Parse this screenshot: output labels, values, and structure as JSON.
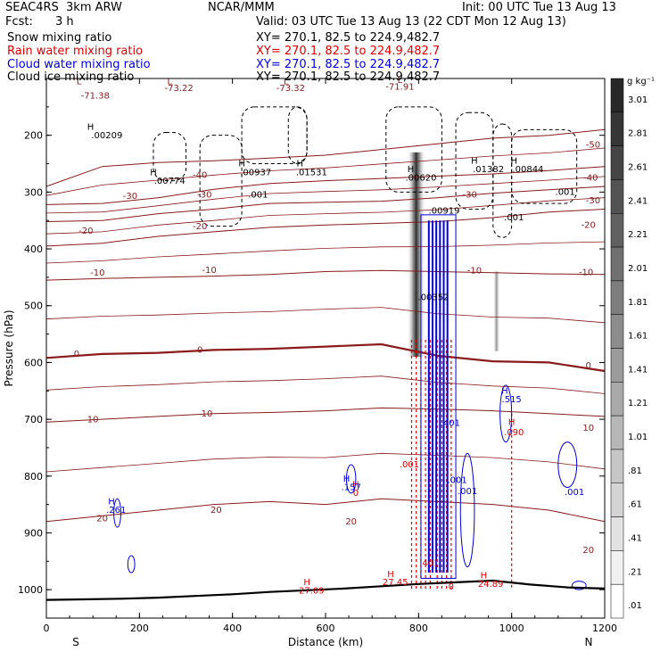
{
  "header": {
    "model": "SEAC4RS  3km ARW",
    "org": "NCAR/MMM",
    "init": "Init: 00 UTC Tue 13 Aug 13",
    "fcst_label": "Fcst:",
    "fcst_value": "3 h",
    "valid": "Valid: 03 UTC Tue 13 Aug 13 (22 CDT Mon 12 Aug 13)",
    "fields": [
      {
        "name": "Snow mixing ratio",
        "xy": "XY= 270.1, 82.5 to 224.9,482.7",
        "color": "#000000"
      },
      {
        "name": "Rain water mixing ratio",
        "xy": "XY= 270.1, 82.5 to 224.9,482.7",
        "color": "#e00000"
      },
      {
        "name": "Cloud water mixing ratio",
        "xy": "XY= 270.1, 82.5 to 224.9,482.7",
        "color": "#0000e0"
      },
      {
        "name": "Cloud ice mixing ratio",
        "xy": "XY= 270.1, 82.5 to 224.9,482.7",
        "color": "#000000"
      }
    ]
  },
  "colorbar": {
    "unit": "g kg⁻¹",
    "labels": [
      "3.01",
      "2.81",
      "2.61",
      "2.41",
      "2.21",
      "2.01",
      "1.81",
      "1.61",
      "1.41",
      "1.21",
      "1.01",
      ".81",
      ".61",
      ".41",
      ".21",
      ".01"
    ]
  },
  "chart_data": {
    "type": "cross-section",
    "xlabel": "Distance (km)",
    "ylabel": "Pressure (hPa)",
    "xlim": [
      0,
      1200
    ],
    "ylim": [
      1050,
      100
    ],
    "x_ticks": [
      0,
      200,
      400,
      600,
      800,
      1000,
      1200
    ],
    "y_ticks": [
      200,
      300,
      400,
      500,
      600,
      700,
      800,
      900,
      1000
    ],
    "direction_labels": {
      "left": "S",
      "right": "N"
    },
    "temperature_contours": [
      {
        "label": "-50",
        "p": [
          290,
          255,
          248,
          245,
          240,
          235,
          225,
          215,
          205,
          200,
          190
        ]
      },
      {
        "label": "-40",
        "p": [
          322,
          320,
          310,
          295,
          285,
          280,
          276,
          272,
          268,
          262,
          255
        ]
      },
      {
        "label": "-30",
        "p": [
          352,
          350,
          338,
          330,
          320,
          318,
          316,
          310,
          302,
          296,
          290
        ]
      },
      {
        "label": "-20",
        "p": [
          395,
          390,
          378,
          370,
          362,
          358,
          355,
          352,
          345,
          335,
          330
        ]
      },
      {
        "label": "-10",
        "p": [
          455,
          452,
          450,
          448,
          445,
          440,
          438,
          440,
          442,
          444,
          445
        ]
      },
      {
        "label": "0",
        "p": [
          592,
          585,
          583,
          578,
          576,
          572,
          568,
          588,
          598,
          600,
          615
        ]
      },
      {
        "label": "10",
        "p": [
          705,
          700,
          695,
          690,
          688,
          685,
          680,
          682,
          685,
          690,
          695
        ]
      },
      {
        "label": "20",
        "p": [
          880,
          870,
          860,
          850,
          845,
          850,
          840,
          845,
          850,
          860,
          880
        ]
      }
    ],
    "contour_labels": [
      {
        "text": "-73.22",
        "x": 285,
        "p": 122
      },
      {
        "text": "-73.32",
        "x": 525,
        "p": 122
      },
      {
        "text": "-71.91",
        "x": 760,
        "p": 120
      },
      {
        "text": "-71.38",
        "x": 105,
        "p": 135
      },
      {
        "text": "L",
        "x": 70,
        "p": 110
      },
      {
        "text": "L",
        "x": 265,
        "p": 110
      },
      {
        "text": "L",
        "x": 515,
        "p": 110
      },
      {
        "text": "L",
        "x": 760,
        "p": 108
      },
      {
        "text": "-50",
        "x": 1175,
        "p": 222
      },
      {
        "text": "-40",
        "x": 330,
        "p": 275
      },
      {
        "text": "-40",
        "x": 1170,
        "p": 280
      },
      {
        "text": "-30",
        "x": 180,
        "p": 312
      },
      {
        "text": "-30",
        "x": 340,
        "p": 310
      },
      {
        "text": "-30",
        "x": 910,
        "p": 310
      },
      {
        "text": "-30",
        "x": 1175,
        "p": 320
      },
      {
        "text": "-20",
        "x": 85,
        "p": 373
      },
      {
        "text": "-20",
        "x": 330,
        "p": 365
      },
      {
        "text": "-20",
        "x": 1165,
        "p": 363
      },
      {
        "text": "-10",
        "x": 110,
        "p": 447
      },
      {
        "text": "-10",
        "x": 350,
        "p": 442
      },
      {
        "text": "-10",
        "x": 920,
        "p": 443
      },
      {
        "text": "-10",
        "x": 1160,
        "p": 446
      },
      {
        "text": "0",
        "x": 65,
        "p": 590
      },
      {
        "text": "0",
        "x": 330,
        "p": 583
      },
      {
        "text": "0",
        "x": 1165,
        "p": 610
      },
      {
        "text": "10",
        "x": 100,
        "p": 705
      },
      {
        "text": "10",
        "x": 345,
        "p": 695
      },
      {
        "text": "10",
        "x": 1165,
        "p": 720
      },
      {
        "text": "20",
        "x": 120,
        "p": 880
      },
      {
        "text": "20",
        "x": 365,
        "p": 865
      },
      {
        "text": "20",
        "x": 655,
        "p": 885
      },
      {
        "text": "20",
        "x": 1165,
        "p": 935
      }
    ],
    "snow_labels": [
      {
        "text": "H",
        "x": 95,
        "p": 190
      },
      {
        "text": ".00209",
        "x": 130,
        "p": 205
      },
      {
        "text": "H",
        "x": 230,
        "p": 270
      },
      {
        "text": ".00774",
        "x": 265,
        "p": 285
      },
      {
        "text": "H",
        "x": 420,
        "p": 255
      },
      {
        "text": ".00937",
        "x": 450,
        "p": 270
      },
      {
        "text": "H",
        "x": 545,
        "p": 255
      },
      {
        "text": ".01531",
        "x": 570,
        "p": 270
      },
      {
        "text": ".001",
        "x": 455,
        "p": 310
      },
      {
        "text": "H",
        "x": 783,
        "p": 265
      },
      {
        "text": ".00620",
        "x": 805,
        "p": 280
      },
      {
        "text": "H",
        "x": 920,
        "p": 250
      },
      {
        "text": ".01382",
        "x": 950,
        "p": 265
      },
      {
        "text": "H",
        "x": 1005,
        "p": 250
      },
      {
        "text": ".00844",
        "x": 1035,
        "p": 265
      },
      {
        "text": ".001",
        "x": 1115,
        "p": 305
      },
      {
        "text": ".001",
        "x": 1005,
        "p": 350
      },
      {
        "text": ".00919",
        "x": 855,
        "p": 338
      }
    ],
    "cloud_ice_labels": [
      {
        "text": ".00352",
        "x": 832,
        "p": 490
      }
    ],
    "rain_labels": [
      {
        "text": "H",
        "x": 1000,
        "p": 710
      },
      {
        "text": ".090",
        "x": 1005,
        "p": 728
      },
      {
        "text": "H",
        "x": 665,
        "p": 820
      },
      {
        "text": "0",
        "x": 665,
        "p": 835
      },
      {
        "text": ".001",
        "x": 780,
        "p": 785
      },
      {
        "text": "H",
        "x": 560,
        "p": 992
      },
      {
        "text": "27.09",
        "x": 570,
        "p": 1007
      },
      {
        "text": "H",
        "x": 740,
        "p": 978
      },
      {
        "text": "27.45",
        "x": 750,
        "p": 992
      },
      {
        "text": "H",
        "x": 940,
        "p": 980
      },
      {
        "text": "24.89",
        "x": 955,
        "p": 995
      },
      {
        "text": ".401",
        "x": 823,
        "p": 958
      },
      {
        "text": "0",
        "x": 870,
        "p": 1000
      }
    ],
    "cloud_water_labels": [
      {
        "text": "H",
        "x": 985,
        "p": 655
      },
      {
        "text": ".515",
        "x": 1000,
        "p": 670
      },
      {
        "text": ".401",
        "x": 868,
        "p": 712
      },
      {
        "text": "H",
        "x": 645,
        "p": 810
      },
      {
        "text": ".157",
        "x": 655,
        "p": 825
      },
      {
        "text": "H",
        "x": 140,
        "p": 850
      },
      {
        "text": ".261",
        "x": 150,
        "p": 865
      },
      {
        "text": ".001",
        "x": 883,
        "p": 812
      },
      {
        "text": ".001",
        "x": 905,
        "p": 832
      },
      {
        "text": ".001",
        "x": 1135,
        "p": 833
      }
    ],
    "terrain_pressure": [
      1018,
      1017,
      1016,
      1014,
      1011,
      1008,
      1004,
      1001,
      998,
      994,
      990,
      987,
      984,
      991,
      996,
      998
    ]
  }
}
